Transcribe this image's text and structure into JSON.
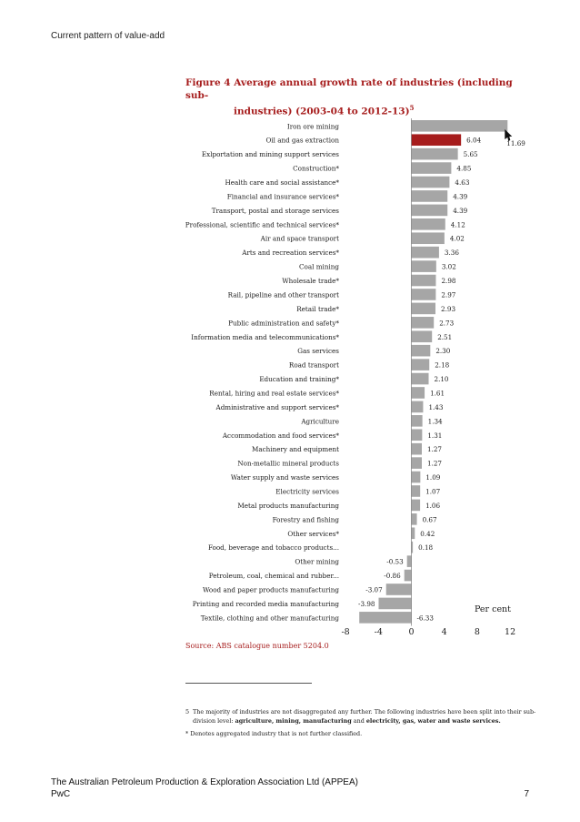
{
  "header": {
    "title": "Current pattern of value-add"
  },
  "figure": {
    "title_line1": "Figure 4 Average annual growth rate of industries (including sub-",
    "title_line2": "industries) (2003-04 to 2012-13)",
    "title_sup": "5"
  },
  "chart_data": {
    "type": "bar",
    "orientation": "horizontal",
    "categories": [
      "Iron ore mining",
      "Oil and gas extraction",
      "Exlportation and mining support services",
      "Construction*",
      "Health care and social assistance*",
      "Financial and insurance services*",
      "Transport, postal and storage services",
      "Professional, scientific and technical services*",
      "Air and space transport",
      "Arts and recreation services*",
      "Coal mining",
      "Wholesale trade*",
      "Rail, pipeline and other transport",
      "Retail trade*",
      "Public administration and safety*",
      "Information media and telecommunications*",
      "Gas services",
      "Road transport",
      "Education and training*",
      "Rental, hiring and real estate services*",
      "Administrative and support services*",
      "Agriculture",
      "Accommodation and food services*",
      "Machinery and equipment",
      "Non-metallic mineral products",
      "Water supply and waste services",
      "Electricity services",
      "Metal products manufacturing",
      "Forestry and fishing",
      "Other services*",
      "Food, beverage and tobacco products...",
      "Other mining",
      "Petroleum, coal, chemical and rubber...",
      "Wood and paper products manufacturing",
      "Printing and recorded media manufacturing",
      "Textile, clothing and other manufacturing"
    ],
    "values": [
      11.69,
      6.04,
      5.65,
      4.85,
      4.63,
      4.39,
      4.39,
      4.12,
      4.02,
      3.36,
      3.02,
      2.98,
      2.97,
      2.93,
      2.73,
      2.51,
      2.3,
      2.18,
      2.1,
      1.61,
      1.43,
      1.34,
      1.31,
      1.27,
      1.27,
      1.09,
      1.07,
      1.06,
      0.67,
      0.42,
      0.18,
      -0.53,
      -0.86,
      -3.07,
      -3.98,
      -6.33
    ],
    "value_labels": [
      "11.69",
      "6.04",
      "5.65",
      "4.85",
      "4.63",
      "4.39",
      "4.39",
      "4.12",
      "4.02",
      "3.36",
      "3.02",
      "2.98",
      "2.97",
      "2.93",
      "2.73",
      "2.51",
      "2.30",
      "2.18",
      "2.10",
      "1.61",
      "1.43",
      "1.34",
      "1.31",
      "1.27",
      "1.27",
      "1.09",
      "1.07",
      "1.06",
      "0.67",
      "0.42",
      "0.18",
      "-0.53",
      "-0.86",
      "-3.07",
      "-3.98",
      "-6.33"
    ],
    "highlight_category": "Oil and gas extraction",
    "xlim": [
      -8,
      12
    ],
    "xticks": [
      "-8",
      "-4",
      "0",
      "4",
      "8",
      "12"
    ],
    "xlabel": "Per cent",
    "grid": false,
    "colors": {
      "bar": "#a6a6a6",
      "highlight": "#a61c1c",
      "axis": "#666666"
    }
  },
  "source": "Source: ABS catalogue number 5204.0",
  "footnotes": {
    "fn5_number": "5",
    "fn5_text": "The majority of industries are not disaggregated any further. The following industries have been split into their sub-",
    "fn5_text2": "division level: ",
    "fn5_bold": "agriculture, mining, manufacturing",
    "fn5_and": " and ",
    "fn5_bold2": "electricity, gas, water and waste services.",
    "aggregated_note": "* Denotes aggregated industry that is not further classified."
  },
  "footer": {
    "org": "The Australian Petroleum Production & Exploration Association Ltd (APPEA)",
    "company": "PwC",
    "page": "7"
  }
}
